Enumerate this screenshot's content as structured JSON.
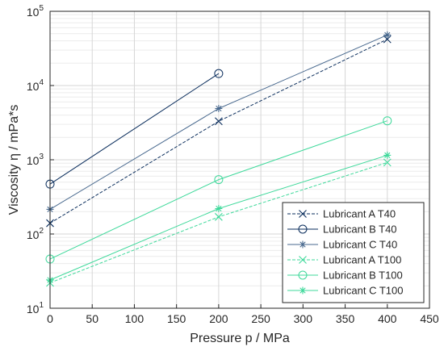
{
  "chart_data": {
    "type": "line",
    "title": "",
    "xlabel": "Pressure p / MPa",
    "ylabel": "Viscosity η / mPa*s",
    "xlim": [
      0,
      450
    ],
    "ylim": [
      10,
      100000
    ],
    "yscale": "log",
    "grid": true,
    "legend_position": "bottom-right",
    "x_ticks": [
      "0",
      "50",
      "100",
      "150",
      "200",
      "250",
      "300",
      "350",
      "400",
      "450"
    ],
    "y_ticks": [
      "10^1",
      "10^2",
      "10^3",
      "10^4",
      "10^5"
    ],
    "series": [
      {
        "name": "Lubricant A T40",
        "color": "#0a2d5c",
        "dash": "dashed",
        "marker": "x",
        "points": [
          {
            "x": 0,
            "y": 140
          },
          {
            "x": 200,
            "y": 3300
          },
          {
            "x": 400,
            "y": 42000
          }
        ]
      },
      {
        "name": "Lubricant B T40",
        "color": "#0a2d5c",
        "dash": "solid",
        "marker": "o",
        "points": [
          {
            "x": 0,
            "y": 470
          },
          {
            "x": 200,
            "y": 14500
          }
        ]
      },
      {
        "name": "Lubricant C T40",
        "color": "#4a6a8f",
        "dash": "solid",
        "marker": "*",
        "points": [
          {
            "x": 0,
            "y": 215
          },
          {
            "x": 200,
            "y": 4900
          },
          {
            "x": 400,
            "y": 48000
          }
        ]
      },
      {
        "name": "Lubricant A T100",
        "color": "#3fd99b",
        "dash": "dashed",
        "marker": "x",
        "points": [
          {
            "x": 0,
            "y": 22
          },
          {
            "x": 200,
            "y": 170
          },
          {
            "x": 400,
            "y": 920
          }
        ]
      },
      {
        "name": "Lubricant B T100",
        "color": "#3fd99b",
        "dash": "solid",
        "marker": "o",
        "points": [
          {
            "x": 0,
            "y": 46
          },
          {
            "x": 200,
            "y": 540
          },
          {
            "x": 400,
            "y": 3350
          }
        ]
      },
      {
        "name": "Lubricant C T100",
        "color": "#3fd99b",
        "dash": "solid",
        "marker": "*",
        "points": [
          {
            "x": 0,
            "y": 24
          },
          {
            "x": 200,
            "y": 220
          },
          {
            "x": 400,
            "y": 1150
          }
        ]
      }
    ]
  }
}
